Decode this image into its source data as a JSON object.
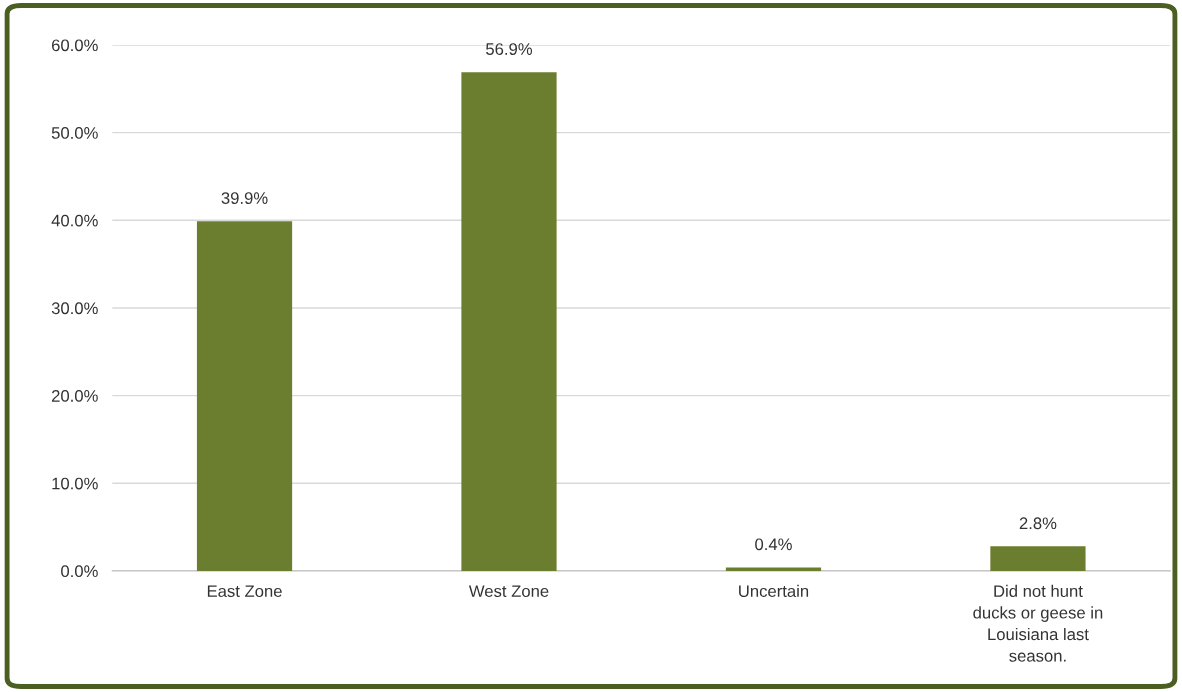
{
  "chart_data": {
    "type": "bar",
    "categories": [
      "East Zone",
      "West Zone",
      "Uncertain",
      "Did not hunt ducks or geese in Louisiana last season."
    ],
    "values": [
      39.9,
      56.9,
      0.4,
      2.8
    ],
    "value_labels": [
      "39.9%",
      "56.9%",
      "0.4%",
      "2.8%"
    ],
    "color": "#6b7d2f",
    "ylim": [
      0,
      60
    ],
    "yticks": [
      {
        "value": 0,
        "label": "0.0%"
      },
      {
        "value": 10,
        "label": "10.0%"
      },
      {
        "value": 20,
        "label": "20.0%"
      },
      {
        "value": 30,
        "label": "30.0%"
      },
      {
        "value": 40,
        "label": "40.0%"
      },
      {
        "value": 50,
        "label": "50.0%"
      },
      {
        "value": 60,
        "label": "60.0%"
      }
    ],
    "grid": "y"
  }
}
